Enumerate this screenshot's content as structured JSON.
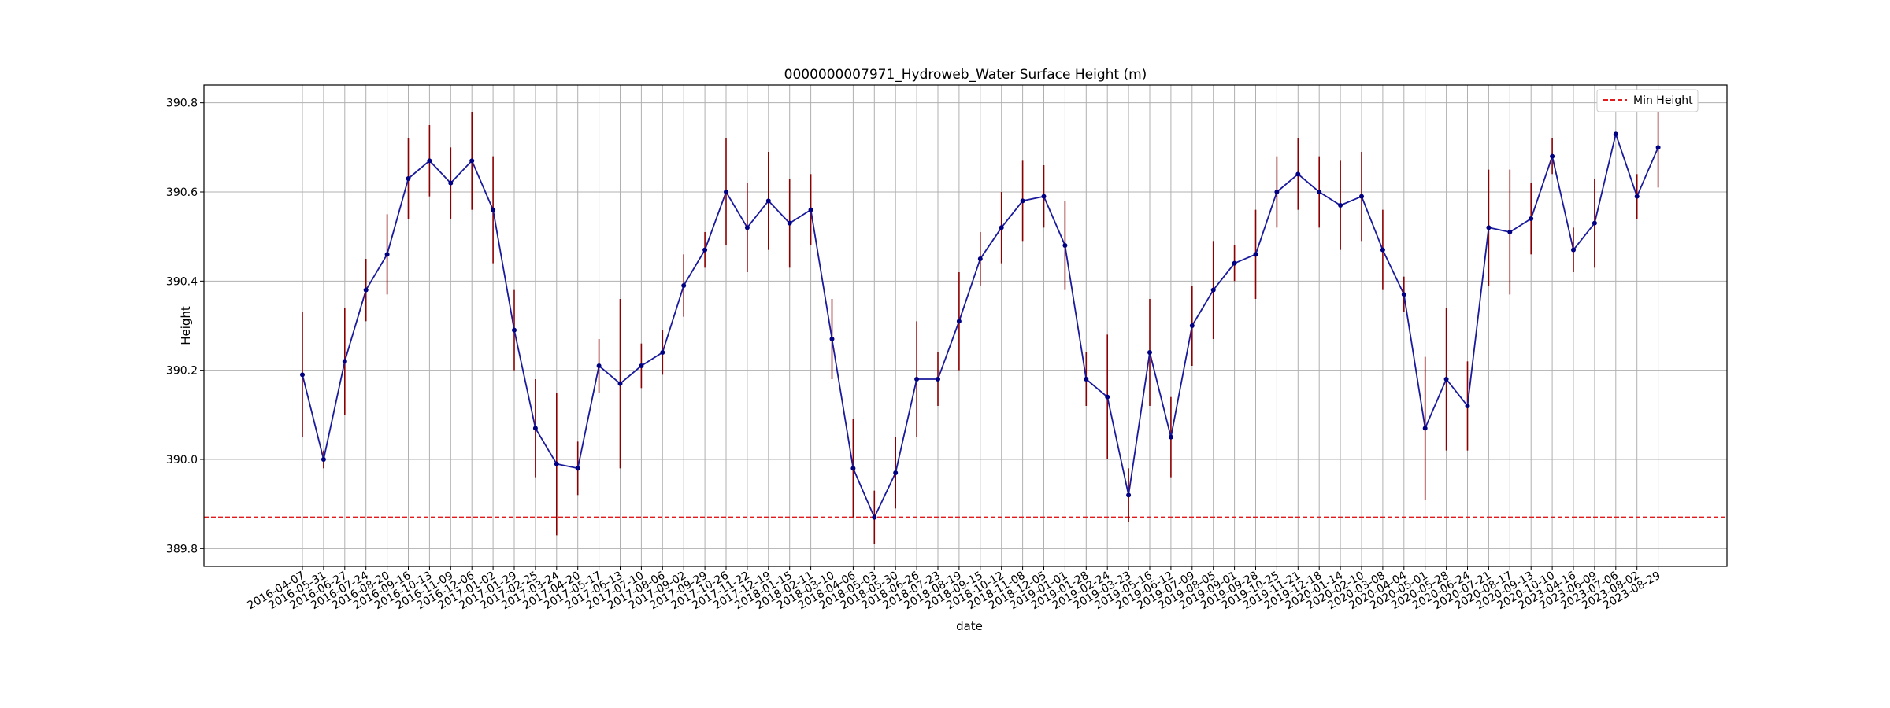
{
  "chart_data": {
    "type": "line",
    "title": "0000000007971_Hydroweb_Water Surface Height (m)",
    "xlabel": "date",
    "ylabel": "Height",
    "ylim": [
      389.76,
      390.84
    ],
    "yticks": [
      389.8,
      390.0,
      390.2,
      390.4,
      390.6,
      390.8
    ],
    "grid": true,
    "legend_position": "top-right",
    "series": [
      {
        "type": "line-with-errorbars",
        "line_color": "#1a1a9c",
        "marker_color": "#000080",
        "error_color": "#8b0000",
        "x": [
          "2016-04-07",
          "2016-05-31",
          "2016-06-27",
          "2016-07-24",
          "2016-08-20",
          "2016-09-16",
          "2016-10-13",
          "2016-11-09",
          "2016-12-06",
          "2017-01-02",
          "2017-01-29",
          "2017-02-25",
          "2017-03-24",
          "2017-04-20",
          "2017-05-17",
          "2017-06-13",
          "2017-07-10",
          "2017-08-06",
          "2017-09-02",
          "2017-09-29",
          "2017-10-26",
          "2017-11-22",
          "2017-12-19",
          "2018-01-15",
          "2018-02-11",
          "2018-03-10",
          "2018-04-06",
          "2018-05-03",
          "2018-05-30",
          "2018-06-26",
          "2018-07-23",
          "2018-08-19",
          "2018-09-15",
          "2018-10-12",
          "2018-11-08",
          "2018-12-05",
          "2019-01-01",
          "2019-01-28",
          "2019-02-24",
          "2019-03-23",
          "2019-05-16",
          "2019-06-12",
          "2019-07-09",
          "2019-08-05",
          "2019-09-01",
          "2019-09-28",
          "2019-10-25",
          "2019-11-21",
          "2019-12-18",
          "2020-01-14",
          "2020-02-10",
          "2020-03-08",
          "2020-04-04",
          "2020-05-01",
          "2020-05-28",
          "2020-06-24",
          "2020-07-21",
          "2020-08-17",
          "2020-09-13",
          "2020-10-10",
          "2023-04-16",
          "2023-06-09",
          "2023-07-06",
          "2023-08-02",
          "2023-08-29"
        ],
        "values": [
          390.19,
          390.0,
          390.22,
          390.38,
          390.46,
          390.63,
          390.67,
          390.62,
          390.67,
          390.56,
          390.29,
          390.07,
          389.99,
          389.98,
          390.21,
          390.17,
          390.21,
          390.24,
          390.39,
          390.47,
          390.6,
          390.52,
          390.58,
          390.53,
          390.56,
          390.27,
          389.98,
          389.87,
          389.97,
          390.18,
          390.18,
          390.31,
          390.45,
          390.52,
          390.58,
          390.59,
          390.48,
          390.18,
          390.14,
          389.92,
          390.24,
          390.05,
          390.3,
          390.38,
          390.44,
          390.46,
          390.6,
          390.64,
          390.6,
          390.57,
          390.59,
          390.47,
          390.37,
          390.07,
          390.18,
          390.12,
          390.52,
          390.51,
          390.54,
          390.68,
          390.47,
          390.53,
          390.73,
          390.59,
          390.7
        ],
        "error_low": [
          390.05,
          389.98,
          390.1,
          390.31,
          390.37,
          390.54,
          390.59,
          390.54,
          390.56,
          390.44,
          390.2,
          389.96,
          389.83,
          389.92,
          390.15,
          389.98,
          390.16,
          390.19,
          390.32,
          390.43,
          390.48,
          390.42,
          390.47,
          390.43,
          390.48,
          390.18,
          389.87,
          389.81,
          389.89,
          390.05,
          390.12,
          390.2,
          390.39,
          390.44,
          390.49,
          390.52,
          390.38,
          390.12,
          390.0,
          389.86,
          390.12,
          389.96,
          390.21,
          390.27,
          390.4,
          390.36,
          390.52,
          390.56,
          390.52,
          390.47,
          390.49,
          390.38,
          390.33,
          389.91,
          390.02,
          390.02,
          390.39,
          390.37,
          390.46,
          390.64,
          390.42,
          390.43,
          390.73,
          390.54,
          390.61
        ],
        "error_high": [
          390.33,
          390.02,
          390.34,
          390.45,
          390.55,
          390.72,
          390.75,
          390.7,
          390.78,
          390.68,
          390.38,
          390.18,
          390.15,
          390.04,
          390.27,
          390.36,
          390.26,
          390.29,
          390.46,
          390.51,
          390.72,
          390.62,
          390.69,
          390.63,
          390.64,
          390.36,
          390.09,
          389.93,
          390.05,
          390.31,
          390.24,
          390.42,
          390.51,
          390.6,
          390.67,
          390.66,
          390.58,
          390.24,
          390.28,
          389.98,
          390.36,
          390.14,
          390.39,
          390.49,
          390.48,
          390.56,
          390.68,
          390.72,
          390.68,
          390.67,
          390.69,
          390.56,
          390.41,
          390.23,
          390.34,
          390.22,
          390.65,
          390.65,
          390.62,
          390.72,
          390.52,
          390.63,
          390.73,
          390.64,
          390.78
        ]
      },
      {
        "type": "hline",
        "name": "Min Height",
        "y": 389.87,
        "color": "#e31a1c",
        "style": "dashed"
      }
    ]
  }
}
